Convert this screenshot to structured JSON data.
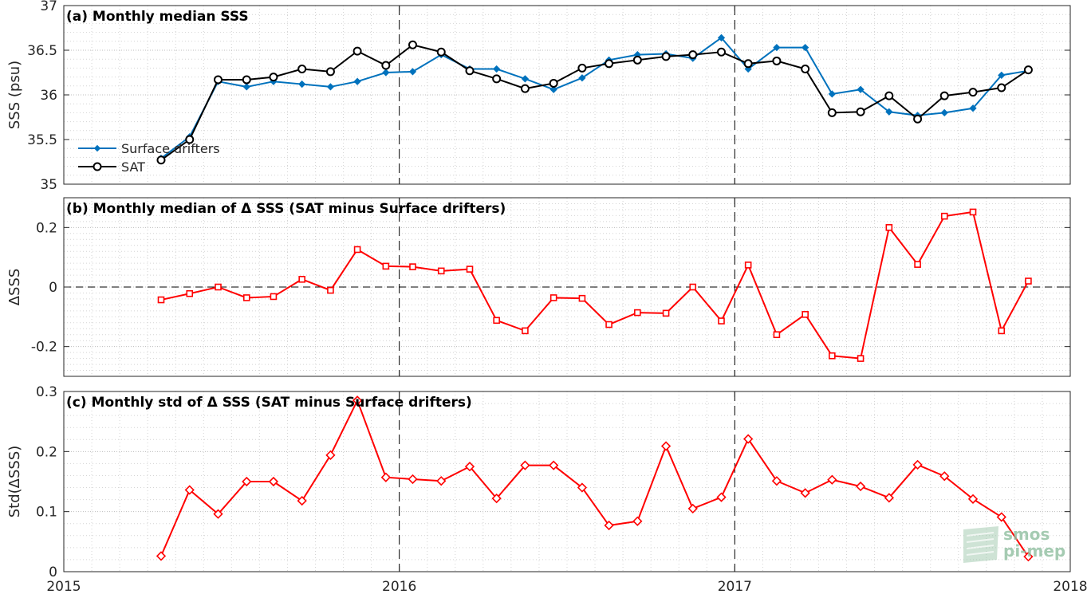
{
  "chart_data": [
    {
      "type": "line",
      "title": "(a) Monthly median SSS",
      "ylabel": "SSS (psu)",
      "xlim": [
        2015,
        2018
      ],
      "ylim": [
        35,
        37
      ],
      "ytick_labels": [
        "35",
        "35.5",
        "36",
        "36.5",
        "37"
      ],
      "grid": true,
      "legend_position": "left",
      "x": [
        2015.29,
        2015.375,
        2015.46,
        2015.545,
        2015.625,
        2015.71,
        2015.795,
        2015.875,
        2015.96,
        2016.04,
        2016.125,
        2016.21,
        2016.29,
        2016.375,
        2016.46,
        2016.545,
        2016.625,
        2016.71,
        2016.795,
        2016.875,
        2016.96,
        2017.04,
        2017.125,
        2017.21,
        2017.29,
        2017.375,
        2017.46,
        2017.545,
        2017.625,
        2017.71,
        2017.795,
        2017.875
      ],
      "series": [
        {
          "name": "Surface drifters",
          "color": "#0072BD",
          "marker": "diamond",
          "values": [
            35.29,
            35.53,
            36.15,
            36.09,
            36.15,
            36.12,
            36.09,
            36.15,
            36.25,
            36.26,
            36.45,
            36.29,
            36.29,
            36.18,
            36.06,
            36.19,
            36.39,
            36.45,
            36.46,
            36.41,
            36.64,
            36.29,
            36.53,
            36.53,
            36.01,
            36.06,
            35.81,
            35.77,
            35.8,
            35.85,
            36.22,
            36.27
          ]
        },
        {
          "name": "SAT",
          "color": "#000000",
          "marker": "circle",
          "values": [
            35.27,
            35.5,
            36.17,
            36.17,
            36.2,
            36.29,
            36.26,
            36.49,
            36.33,
            36.56,
            36.48,
            36.27,
            36.18,
            36.07,
            36.13,
            36.3,
            36.35,
            36.39,
            36.43,
            36.45,
            36.48,
            36.35,
            36.38,
            36.29,
            35.8,
            35.81,
            35.99,
            35.73,
            35.99,
            36.03,
            36.08,
            36.28
          ]
        }
      ]
    },
    {
      "type": "line",
      "title": "(b) Monthly median of Δ SSS (SAT minus Surface drifters)",
      "ylabel": "ΔSSS",
      "xlim": [
        2015,
        2018
      ],
      "ylim": [
        -0.3,
        0.3
      ],
      "ytick_labels": [
        "-0.2",
        "0",
        "0.2"
      ],
      "grid": true,
      "reference_line": 0,
      "x": [
        2015.29,
        2015.375,
        2015.46,
        2015.545,
        2015.625,
        2015.71,
        2015.795,
        2015.875,
        2015.96,
        2016.04,
        2016.125,
        2016.21,
        2016.29,
        2016.375,
        2016.46,
        2016.545,
        2016.625,
        2016.71,
        2016.795,
        2016.875,
        2016.96,
        2017.04,
        2017.125,
        2017.21,
        2017.29,
        2017.375,
        2017.46,
        2017.545,
        2017.625,
        2017.71,
        2017.795,
        2017.875
      ],
      "series": [
        {
          "name": "",
          "color": "#FF0000",
          "marker": "square",
          "values": [
            -0.043,
            -0.022,
            0.0,
            -0.036,
            -0.032,
            0.026,
            -0.011,
            0.126,
            0.07,
            0.068,
            0.054,
            0.06,
            -0.112,
            -0.147,
            -0.036,
            -0.038,
            -0.126,
            -0.086,
            -0.088,
            0.0,
            -0.114,
            0.074,
            -0.16,
            -0.092,
            -0.231,
            -0.24,
            0.2,
            0.076,
            0.238,
            0.252,
            -0.147,
            0.02
          ]
        }
      ]
    },
    {
      "type": "line",
      "title": "(c) Monthly std of Δ SSS (SAT minus Surface drifters)",
      "ylabel": "Std(ΔSSS)",
      "xlabel": "",
      "xlim": [
        2015,
        2018
      ],
      "xtick_labels": [
        "2015",
        "2016",
        "2017",
        "2018"
      ],
      "ylim": [
        0,
        0.3
      ],
      "ytick_labels": [
        "0",
        "0.1",
        "0.2",
        "0.3"
      ],
      "grid": true,
      "x": [
        2015.29,
        2015.375,
        2015.46,
        2015.545,
        2015.625,
        2015.71,
        2015.795,
        2015.875,
        2015.96,
        2016.04,
        2016.125,
        2016.21,
        2016.29,
        2016.375,
        2016.46,
        2016.545,
        2016.625,
        2016.71,
        2016.795,
        2016.875,
        2016.96,
        2017.04,
        2017.125,
        2017.21,
        2017.29,
        2017.375,
        2017.46,
        2017.545,
        2017.625,
        2017.71,
        2017.795,
        2017.875
      ],
      "series": [
        {
          "name": "",
          "color": "#FF0000",
          "marker": "diamond",
          "values": [
            0.026,
            0.136,
            0.096,
            0.15,
            0.15,
            0.118,
            0.194,
            0.285,
            0.157,
            0.154,
            0.151,
            0.175,
            0.122,
            0.177,
            0.177,
            0.14,
            0.077,
            0.084,
            0.209,
            0.105,
            0.124,
            0.221,
            0.151,
            0.131,
            0.153,
            0.142,
            0.123,
            0.178,
            0.159,
            0.121,
            0.091,
            0.025
          ]
        }
      ]
    }
  ],
  "watermark": {
    "line1": "smos",
    "line2": "pi-mep",
    "color": "#8fbfa0"
  }
}
